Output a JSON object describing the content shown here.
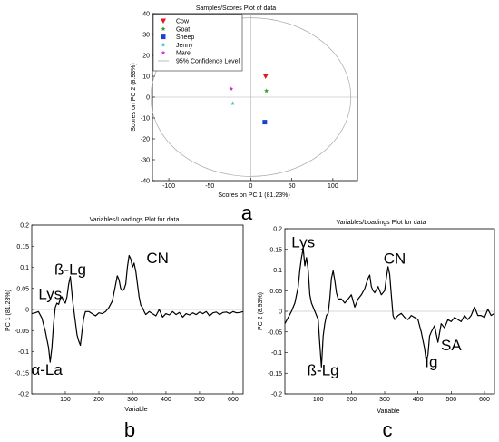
{
  "panels": {
    "a": "a",
    "b": "b",
    "c": "c"
  },
  "chart_data": [
    {
      "type": "scatter",
      "title": "Samples/Scores Plot of data",
      "xlabel": "Scores on PC 1 (81.23%)",
      "ylabel": "Scores on PC 2 (8.93%)",
      "xlim": [
        -120,
        130
      ],
      "ylim": [
        -40,
        40
      ],
      "xticks": [
        "-100",
        "-50",
        "0",
        "50",
        "100"
      ],
      "yticks": [
        "-40",
        "-30",
        "-20",
        "-10",
        "0",
        "10",
        "20",
        "30",
        "40"
      ],
      "legend_placement": "top-left",
      "confidence_ellipse": {
        "label": "95% Confidence Level",
        "center": [
          0,
          0
        ],
        "rx": 122,
        "ry": 38,
        "color": "#aaaaaa"
      },
      "series": [
        {
          "name": "Cow",
          "marker": "triangle-down",
          "color": "#e31a1c",
          "x": [
            18
          ],
          "y": [
            10
          ]
        },
        {
          "name": "Goat",
          "marker": "star",
          "color": "#2ca02c",
          "x": [
            19
          ],
          "y": [
            3
          ]
        },
        {
          "name": "Sheep",
          "marker": "square",
          "color": "#1f3fd0",
          "x": [
            17
          ],
          "y": [
            -12
          ]
        },
        {
          "name": "Jenny",
          "marker": "star",
          "color": "#46c8c8",
          "x": [
            -22
          ],
          "y": [
            -3
          ]
        },
        {
          "name": "Mare",
          "marker": "star",
          "color": "#cc33cc",
          "x": [
            -24
          ],
          "y": [
            4
          ]
        }
      ]
    },
    {
      "type": "line",
      "title": "Variables/Loadings Plot for data",
      "xlabel": "Variable",
      "ylabel": "PC 1 (81.23%)",
      "xlim": [
        0,
        630
      ],
      "ylim": [
        -0.2,
        0.2
      ],
      "xticks": [
        "100",
        "200",
        "300",
        "400",
        "500",
        "600"
      ],
      "yticks": [
        "-0.2",
        "-0.15",
        "-0.1",
        "-0.05",
        "0",
        "0.05",
        "0.1",
        "0.15",
        "0.2"
      ],
      "x": [
        0,
        10,
        20,
        30,
        40,
        50,
        55,
        60,
        65,
        70,
        75,
        80,
        85,
        90,
        95,
        100,
        105,
        110,
        115,
        118,
        122,
        126,
        130,
        135,
        140,
        145,
        150,
        155,
        160,
        170,
        180,
        190,
        200,
        210,
        220,
        230,
        240,
        250,
        255,
        260,
        265,
        270,
        275,
        280,
        285,
        290,
        295,
        300,
        305,
        310,
        315,
        320,
        325,
        330,
        335,
        340,
        350,
        360,
        370,
        380,
        390,
        400,
        410,
        420,
        430,
        440,
        450,
        460,
        470,
        480,
        490,
        500,
        510,
        520,
        530,
        540,
        550,
        560,
        570,
        580,
        590,
        600,
        610,
        620,
        630
      ],
      "y": [
        -0.01,
        -0.008,
        -0.005,
        -0.02,
        -0.05,
        -0.09,
        -0.125,
        -0.09,
        -0.035,
        0.005,
        0.015,
        0.012,
        0.025,
        0.03,
        0.02,
        0.015,
        0.03,
        0.06,
        0.078,
        0.055,
        0.02,
        -0.005,
        -0.03,
        -0.06,
        -0.075,
        -0.085,
        -0.05,
        -0.02,
        -0.005,
        -0.005,
        -0.01,
        -0.015,
        -0.008,
        -0.01,
        -0.005,
        0.005,
        0.02,
        0.06,
        0.08,
        0.07,
        0.05,
        0.045,
        0.048,
        0.06,
        0.1,
        0.128,
        0.12,
        0.1,
        0.11,
        0.09,
        0.06,
        0.03,
        0.01,
        0.005,
        -0.005,
        -0.012,
        -0.005,
        -0.01,
        -0.015,
        0.0,
        -0.018,
        -0.01,
        -0.013,
        -0.005,
        -0.012,
        -0.007,
        -0.018,
        -0.01,
        -0.013,
        -0.008,
        -0.012,
        -0.006,
        -0.01,
        -0.005,
        -0.015,
        -0.008,
        -0.006,
        -0.012,
        -0.007,
        -0.006,
        -0.01,
        -0.005,
        -0.008,
        -0.007,
        -0.005
      ],
      "annotations": [
        {
          "text": "Lys",
          "x": 55,
          "y": 0.025
        },
        {
          "text": "ß-Lg",
          "x": 115,
          "y": 0.083
        },
        {
          "text": "CN",
          "x": 375,
          "y": 0.11
        },
        {
          "text": "α-La",
          "x": 45,
          "y": -0.155
        }
      ]
    },
    {
      "type": "line",
      "title": "Variables/Loadings Plot for data",
      "xlabel": "Variable",
      "ylabel": "PC 2 (8.93%)",
      "xlim": [
        0,
        630
      ],
      "ylim": [
        -0.2,
        0.2
      ],
      "xticks": [
        "100",
        "200",
        "300",
        "400",
        "500",
        "600"
      ],
      "yticks": [
        "-0.2",
        "-0.15",
        "-0.1",
        "-0.05",
        "0",
        "0.05",
        "0.1",
        "0.15",
        "0.2"
      ],
      "x": [
        0,
        10,
        20,
        30,
        40,
        45,
        50,
        55,
        60,
        65,
        70,
        75,
        80,
        90,
        100,
        105,
        110,
        115,
        120,
        125,
        130,
        135,
        140,
        145,
        150,
        155,
        160,
        170,
        180,
        190,
        200,
        210,
        220,
        230,
        240,
        250,
        255,
        260,
        265,
        270,
        280,
        290,
        300,
        305,
        310,
        315,
        320,
        325,
        330,
        340,
        350,
        360,
        370,
        380,
        390,
        400,
        410,
        420,
        425,
        430,
        435,
        440,
        450,
        460,
        470,
        480,
        490,
        500,
        510,
        520,
        530,
        540,
        550,
        560,
        570,
        580,
        590,
        600,
        610,
        620,
        630
      ],
      "y": [
        -0.03,
        -0.015,
        0.0,
        0.02,
        0.06,
        0.1,
        0.13,
        0.152,
        0.11,
        0.13,
        0.1,
        0.04,
        0.02,
        0.0,
        -0.02,
        -0.08,
        -0.135,
        -0.06,
        -0.03,
        -0.01,
        -0.005,
        0.03,
        0.08,
        0.098,
        0.075,
        0.045,
        0.03,
        0.03,
        0.02,
        0.03,
        0.04,
        0.01,
        0.03,
        0.04,
        0.055,
        0.08,
        0.088,
        0.06,
        0.05,
        0.045,
        0.06,
        0.04,
        0.05,
        0.08,
        0.108,
        0.09,
        0.04,
        -0.01,
        -0.02,
        -0.01,
        -0.005,
        -0.015,
        -0.02,
        -0.01,
        -0.015,
        -0.02,
        -0.05,
        -0.09,
        -0.12,
        -0.105,
        -0.06,
        -0.05,
        -0.035,
        -0.075,
        -0.03,
        -0.04,
        -0.02,
        -0.025,
        -0.015,
        -0.02,
        -0.025,
        -0.01,
        -0.02,
        -0.01,
        0.01,
        -0.01,
        -0.01,
        -0.015,
        0.005,
        -0.01,
        -0.005
      ],
      "annotations": [
        {
          "text": "Lys",
          "x": 55,
          "y": 0.155
        },
        {
          "text": "CN",
          "x": 330,
          "y": 0.115
        },
        {
          "text": "ß-Lg",
          "x": 115,
          "y": -0.155
        },
        {
          "text": "SA",
          "x": 500,
          "y": -0.095
        },
        {
          "text": "Ig",
          "x": 440,
          "y": -0.135
        }
      ]
    }
  ]
}
